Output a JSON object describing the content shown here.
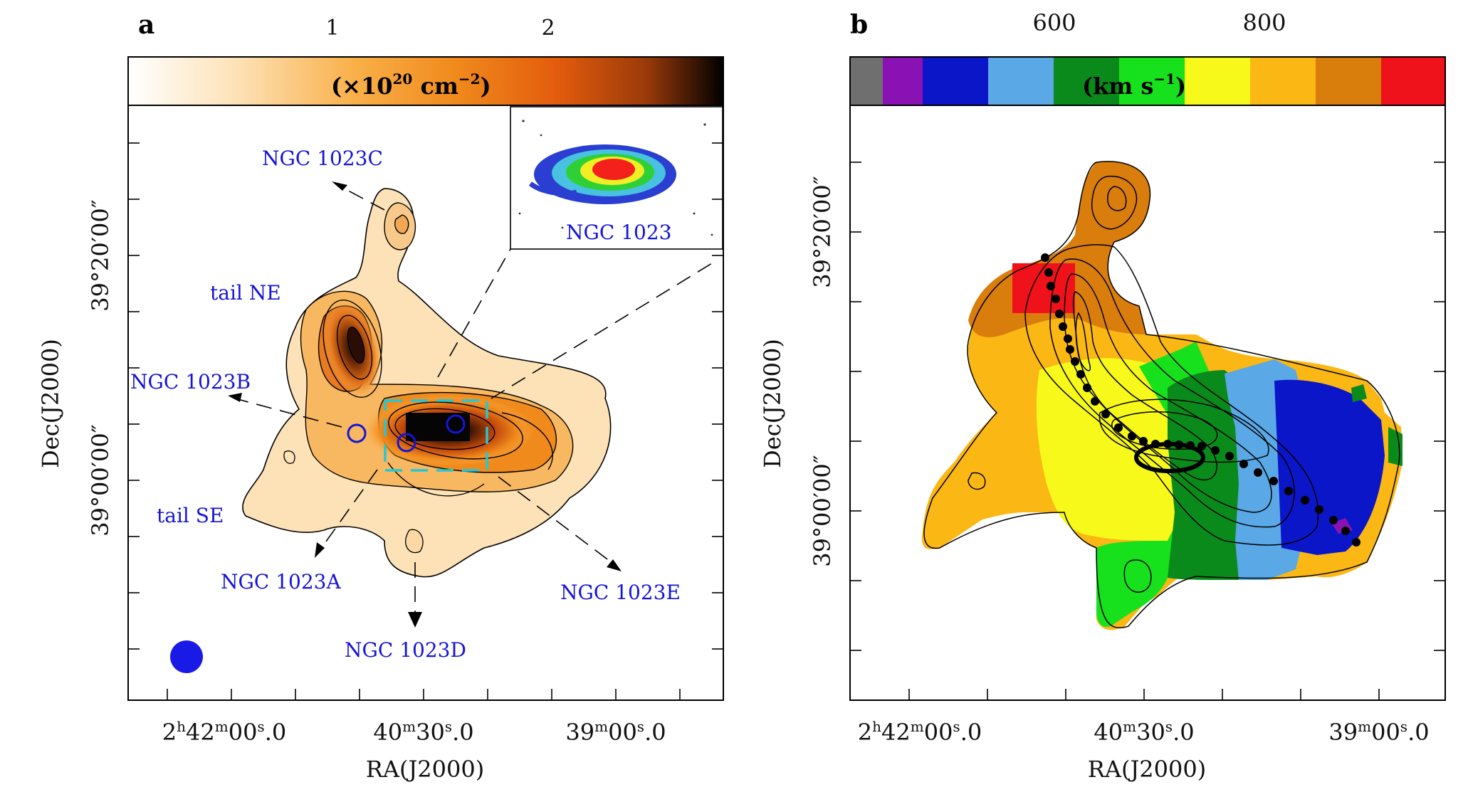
{
  "panels": {
    "a": {
      "letter": "a",
      "colorbar": {
        "ticks": [
          "1",
          "2"
        ],
        "unit_base": "(×10",
        "unit_exp1": "20",
        "unit_mid": " cm",
        "unit_exp2": "−2",
        "unit_end": ")"
      },
      "xlabel": "RA(J2000)",
      "ylabel": "Dec(J2000)",
      "xticks": [
        {
          "h": "2",
          "hu": "h",
          "m": "42",
          "mu": "m",
          "s": "00",
          "su": "s",
          "frac": ".0"
        },
        {
          "h": "",
          "hu": "",
          "m": "40",
          "mu": "m",
          "s": "30",
          "su": "s",
          "frac": ".0"
        },
        {
          "h": "",
          "hu": "",
          "m": "39",
          "mu": "m",
          "s": "00",
          "su": "s",
          "frac": ".0"
        }
      ],
      "yticks": [
        "39°20′00″",
        "39°00′00″"
      ],
      "labels": {
        "ngc1023c": "NGC 1023C",
        "tail_ne": "tail NE",
        "ngc1023b": "NGC 1023B",
        "tail_se": "tail SE",
        "ngc1023a": "NGC 1023A",
        "ngc1023d": "NGC 1023D",
        "ngc1023e": "NGC 1023E",
        "inset": "NGC 1023"
      }
    },
    "b": {
      "letter": "b",
      "colorbar": {
        "ticks": [
          "600",
          "800"
        ],
        "unit_base": "(km s",
        "unit_exp": "−1",
        "unit_end": ")"
      },
      "xlabel": "RA(J2000)",
      "ylabel": "Dec(J2000)",
      "xticks": [
        {
          "h": "2",
          "hu": "h",
          "m": "42",
          "mu": "m",
          "s": "00",
          "su": "s",
          "frac": ".0"
        },
        {
          "h": "",
          "hu": "",
          "m": "40",
          "mu": "m",
          "s": "30",
          "su": "s",
          "frac": ".0"
        },
        {
          "h": "",
          "hu": "",
          "m": "39",
          "mu": "m",
          "s": "00",
          "su": "s",
          "frac": ".0"
        }
      ],
      "yticks": [
        "39°20′00″",
        "39°00′00″"
      ]
    }
  },
  "colors": {
    "column_density_ramp": [
      "#ffffff",
      "#fde2b8",
      "#f9b049",
      "#f08a1c",
      "#e35c0d",
      "#9b3a0a",
      "#000000"
    ],
    "velocity_palette": [
      "#6f6f6f",
      "#8a12b5",
      "#0a16c8",
      "#5aa8e6",
      "#0b8a1c",
      "#17e01c",
      "#f7f91a",
      "#fbb714",
      "#d97d0d",
      "#f0121a"
    ],
    "label_blue": "#1515d6",
    "inset_box": "#23c7d6"
  },
  "chart_data": [
    {
      "type": "heatmap",
      "panel": "a",
      "title": "",
      "xlabel": "RA(J2000)",
      "ylabel": "Dec(J2000)",
      "colorbar": {
        "label": "(×10^20 cm^-2)",
        "ticks": [
          1,
          2
        ]
      },
      "x_tick_labels": [
        "2h42m00.0s",
        "40m30.0s",
        "39m00.0s"
      ],
      "y_tick_labels": [
        "39°20′00″",
        "39°00′00″"
      ],
      "annotations": [
        "NGC 1023C",
        "tail NE",
        "NGC 1023B",
        "tail SE",
        "NGC 1023A",
        "NGC 1023D",
        "NGC 1023E",
        "NGC 1023"
      ]
    },
    {
      "type": "heatmap",
      "panel": "b",
      "title": "",
      "xlabel": "RA(J2000)",
      "ylabel": "Dec(J2000)",
      "colorbar": {
        "label": "(km s^-1)",
        "ticks": [
          600,
          800
        ]
      },
      "x_tick_labels": [
        "2h42m00.0s",
        "40m30.0s",
        "39m00.0s"
      ],
      "y_tick_labels": [
        "39°20′00″",
        "39°00′00″"
      ]
    }
  ]
}
